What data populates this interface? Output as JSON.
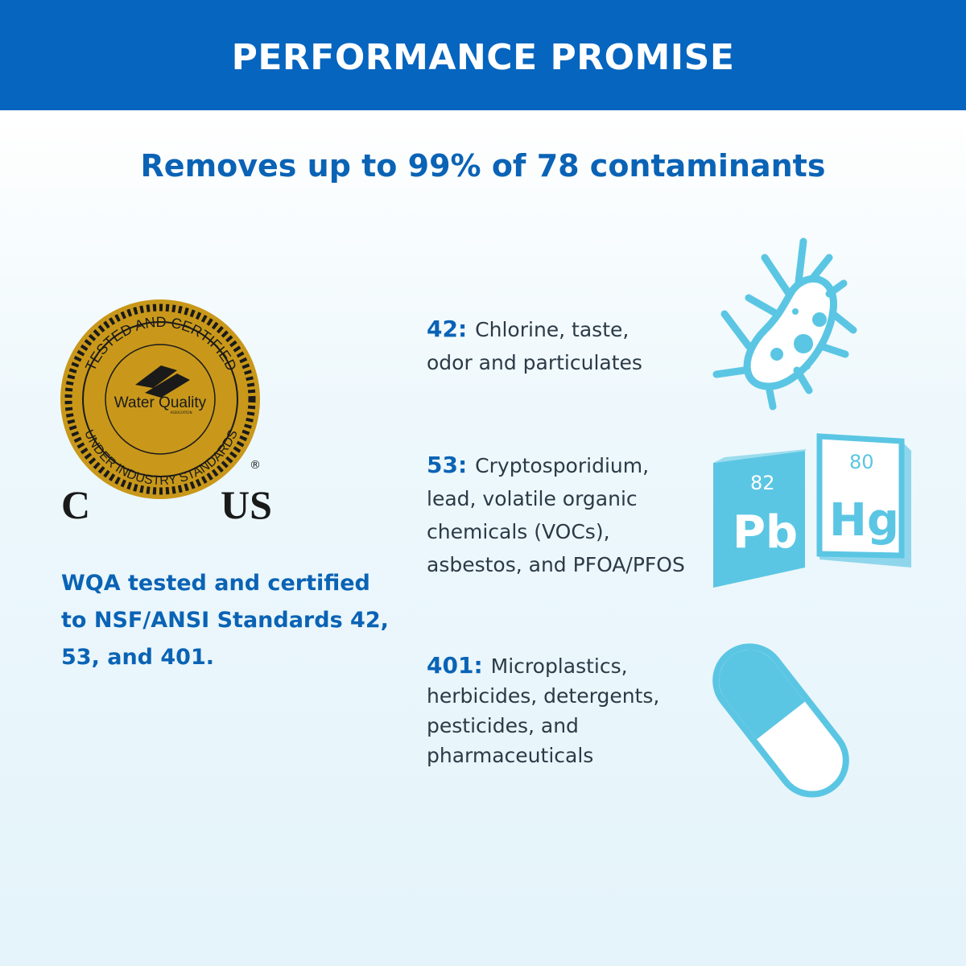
{
  "header": {
    "title": "PERFORMANCE PROMISE"
  },
  "subtitle": "Removes up to 99% of 78 contaminants",
  "seal": {
    "top_text": "TESTED AND CERTIFIED",
    "bottom_text": "UNDER INDUSTRY STANDARDS",
    "center_text": "Water Quality",
    "association": "ASSOCIATION",
    "left_mark": "C",
    "right_mark": "US",
    "registered": "®",
    "gold": "#c9981a"
  },
  "certification": "WQA tested and certified to NSF/ANSI Standards 42, 53, and 401.",
  "items": [
    {
      "number": "42:",
      "text": "Chlorine, taste, odor and particulates",
      "icon": "bacteria-icon"
    },
    {
      "number": "53:",
      "text": "Cryptosporidium, lead, volatile organic chemicals (VOCs), asbestos, and PFOA/PFOS",
      "icon": "periodic-elements-icon",
      "tiles": [
        {
          "num": "82",
          "sym": "Pb"
        },
        {
          "num": "80",
          "sym": "Hg"
        }
      ]
    },
    {
      "number": "401:",
      "text": "Microplastics, herbicides, detergents, pesticides, and pharmaceuticals",
      "icon": "capsule-icon"
    }
  ],
  "colors": {
    "brand_blue": "#0565bf",
    "icon_blue": "#5bc6e3"
  }
}
